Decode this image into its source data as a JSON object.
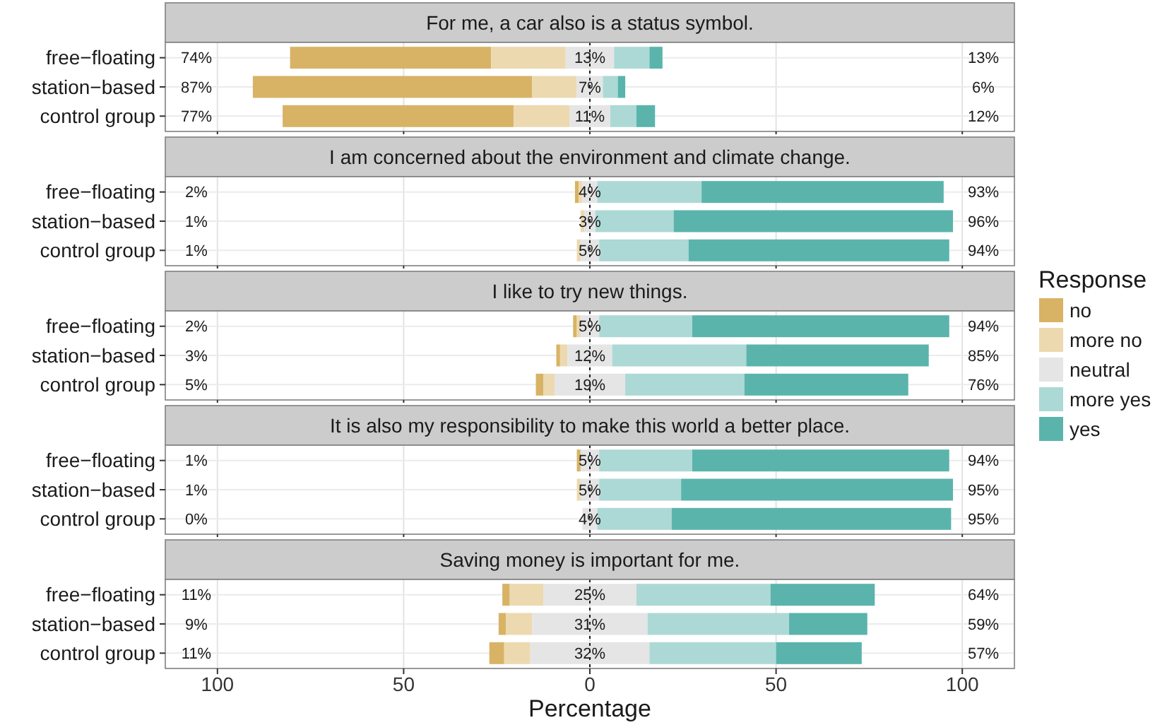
{
  "chart_data": [
    {
      "type": "bar",
      "orientation": "horizontal",
      "title": "For me, a car also is a status symbol.",
      "categories": [
        "free−floating",
        "station−based",
        "control group"
      ],
      "xlim": [
        -114,
        114
      ],
      "xticks": [
        {
          "value": -100,
          "label": null
        },
        {
          "value": -50,
          "label": null
        },
        {
          "value": 0,
          "label": null
        },
        {
          "value": 50,
          "label": null
        },
        {
          "value": 100,
          "label": null
        }
      ],
      "tick_labels": "y",
      "grid": true,
      "ref_lines": [
        {
          "axis": "x",
          "value": 0,
          "line_style": "dashed"
        }
      ],
      "series": [
        {
          "color": "#d8b365",
          "base": [
            -80.5,
            -90.5,
            -82.5
          ],
          "values": [
            54,
            75,
            62
          ]
        },
        {
          "color": "#ecd9b0",
          "base": [
            -26.5,
            -15.5,
            -20.5
          ],
          "values": [
            20,
            12,
            15
          ]
        },
        {
          "color": "#e5e5e5",
          "base": [
            -6.5,
            -3.5,
            -5.5
          ],
          "values": [
            13,
            7,
            11
          ],
          "value_labels": [
            "13%",
            "7%",
            "11%"
          ]
        },
        {
          "color": "#acd9d5",
          "base": [
            6.5,
            3.5,
            5.5
          ],
          "values": [
            9.5,
            4,
            7
          ]
        },
        {
          "color": "#5ab4ac",
          "base": [
            16,
            7.5,
            12.5
          ],
          "values": [
            3.5,
            2,
            5
          ]
        }
      ],
      "annotations": [
        "74%",
        "87%",
        "77%",
        "13%",
        "6%",
        "12%"
      ]
    },
    {
      "type": "bar",
      "orientation": "horizontal",
      "title": "I am concerned about the environment and climate change.",
      "categories": [
        "free−floating",
        "station−based",
        "control group"
      ],
      "xlim": [
        -114,
        114
      ],
      "xticks": [
        {
          "value": -100,
          "label": null
        },
        {
          "value": -50,
          "label": null
        },
        {
          "value": 0,
          "label": null
        },
        {
          "value": 50,
          "label": null
        },
        {
          "value": 100,
          "label": null
        }
      ],
      "tick_labels": "y",
      "grid": true,
      "ref_lines": [
        {
          "axis": "x",
          "value": 0,
          "line_style": "dashed"
        }
      ],
      "series": [
        {
          "color": "#d8b365",
          "base": [
            -4,
            null,
            null
          ],
          "values": [
            1,
            null,
            null
          ]
        },
        {
          "color": "#ecd9b0",
          "base": [
            -3,
            -2.5,
            -3.5
          ],
          "values": [
            1,
            1,
            1
          ]
        },
        {
          "color": "#e5e5e5",
          "base": [
            -2,
            -1.5,
            -2.5
          ],
          "values": [
            4,
            3,
            5
          ],
          "value_labels": [
            "4%",
            "3%",
            "5%"
          ]
        },
        {
          "color": "#acd9d5",
          "base": [
            2,
            1.5,
            2.5
          ],
          "values": [
            28,
            21,
            24
          ]
        },
        {
          "color": "#5ab4ac",
          "base": [
            30,
            22.5,
            26.5
          ],
          "values": [
            65,
            75,
            70
          ]
        }
      ],
      "annotations": [
        "2%",
        "1%",
        "1%",
        "93%",
        "96%",
        "94%"
      ]
    },
    {
      "type": "bar",
      "orientation": "horizontal",
      "title": "I like to try new things.",
      "categories": [
        "free−floating",
        "station−based",
        "control group"
      ],
      "xlim": [
        -114,
        114
      ],
      "xticks": [
        {
          "value": -100,
          "label": null
        },
        {
          "value": -50,
          "label": null
        },
        {
          "value": 0,
          "label": null
        },
        {
          "value": 50,
          "label": null
        },
        {
          "value": 100,
          "label": null
        }
      ],
      "tick_labels": "y",
      "grid": true,
      "legend": "right",
      "legend_title": "Response",
      "ref_lines": [
        {
          "axis": "x",
          "value": 0,
          "line_style": "dashed"
        }
      ],
      "series": [
        {
          "name": "no",
          "color": "#d8b365",
          "base": [
            -4.5,
            -9,
            -14.5
          ],
          "values": [
            1,
            1,
            2
          ]
        },
        {
          "name": "more no",
          "color": "#ecd9b0",
          "base": [
            -3.5,
            -8,
            -12.5
          ],
          "values": [
            1,
            2,
            3
          ]
        },
        {
          "name": "neutral",
          "color": "#e5e5e5",
          "base": [
            -2.5,
            -6,
            -9.5
          ],
          "values": [
            5,
            12,
            19
          ],
          "value_labels": [
            "5%",
            "12%",
            "19%"
          ]
        },
        {
          "name": "more yes",
          "color": "#acd9d5",
          "base": [
            2.5,
            6,
            9.5
          ],
          "values": [
            25,
            36,
            32
          ]
        },
        {
          "name": "yes",
          "color": "#5ab4ac",
          "base": [
            27.5,
            42,
            41.5
          ],
          "values": [
            69,
            49,
            44
          ]
        }
      ],
      "annotations": [
        "2%",
        "3%",
        "5%",
        "94%",
        "85%",
        "76%"
      ]
    },
    {
      "type": "bar",
      "orientation": "horizontal",
      "title": "It is also my responsibility to make this world a better place.",
      "categories": [
        "free−floating",
        "station−based",
        "control group"
      ],
      "xlim": [
        -114,
        114
      ],
      "xticks": [
        {
          "value": -100,
          "label": null
        },
        {
          "value": -50,
          "label": null
        },
        {
          "value": 0,
          "label": null
        },
        {
          "value": 50,
          "label": null
        },
        {
          "value": 100,
          "label": null
        }
      ],
      "tick_labels": "y",
      "grid": true,
      "ref_lines": [
        {
          "axis": "x",
          "value": 0,
          "line_style": "dashed"
        }
      ],
      "series": [
        {
          "color": "#d8b365",
          "base": [
            -3.5,
            null,
            null
          ],
          "values": [
            1,
            null,
            null
          ]
        },
        {
          "color": "#ecd9b0",
          "base": [
            null,
            -3.5,
            null
          ],
          "values": [
            null,
            1,
            null
          ]
        },
        {
          "color": "#e5e5e5",
          "base": [
            -2.5,
            -2.5,
            -2
          ],
          "values": [
            5,
            5,
            4
          ],
          "value_labels": [
            "5%",
            "5%",
            "4%"
          ]
        },
        {
          "color": "#acd9d5",
          "base": [
            2.5,
            2.5,
            2
          ],
          "values": [
            25,
            22,
            20
          ]
        },
        {
          "color": "#5ab4ac",
          "base": [
            27.5,
            24.5,
            22
          ],
          "values": [
            69,
            73,
            75
          ]
        }
      ],
      "annotations": [
        "1%",
        "1%",
        "0%",
        "94%",
        "95%",
        "95%"
      ]
    },
    {
      "type": "bar",
      "orientation": "horizontal",
      "title": "Saving money is important for me.",
      "categories": [
        "free−floating",
        "station−based",
        "control group"
      ],
      "xlim": [
        -114,
        114
      ],
      "xticks": [
        {
          "value": -100,
          "label": "100"
        },
        {
          "value": -50,
          "label": "50"
        },
        0,
        50,
        100
      ],
      "xlabel": "Percentage",
      "grid": true,
      "ref_lines": [
        {
          "axis": "x",
          "value": 0,
          "line_style": "dashed"
        }
      ],
      "series": [
        {
          "color": "#d8b365",
          "base": [
            -23.5,
            -24.5,
            -27
          ],
          "values": [
            2,
            2,
            4
          ]
        },
        {
          "color": "#ecd9b0",
          "base": [
            -21.5,
            -22.5,
            -23
          ],
          "values": [
            9,
            7,
            7
          ]
        },
        {
          "color": "#e5e5e5",
          "base": [
            -12.5,
            -15.5,
            -16
          ],
          "values": [
            25,
            31,
            32
          ],
          "value_labels": [
            "25%",
            "31%",
            "32%"
          ]
        },
        {
          "color": "#acd9d5",
          "base": [
            12.5,
            15.5,
            16
          ],
          "values": [
            36,
            38,
            34
          ]
        },
        {
          "color": "#5ab4ac",
          "base": [
            48.5,
            53.5,
            50
          ],
          "values": [
            28,
            21,
            23
          ]
        }
      ],
      "annotations": [
        "11%",
        "9%",
        "11%",
        "64%",
        "59%",
        "57%"
      ]
    }
  ]
}
